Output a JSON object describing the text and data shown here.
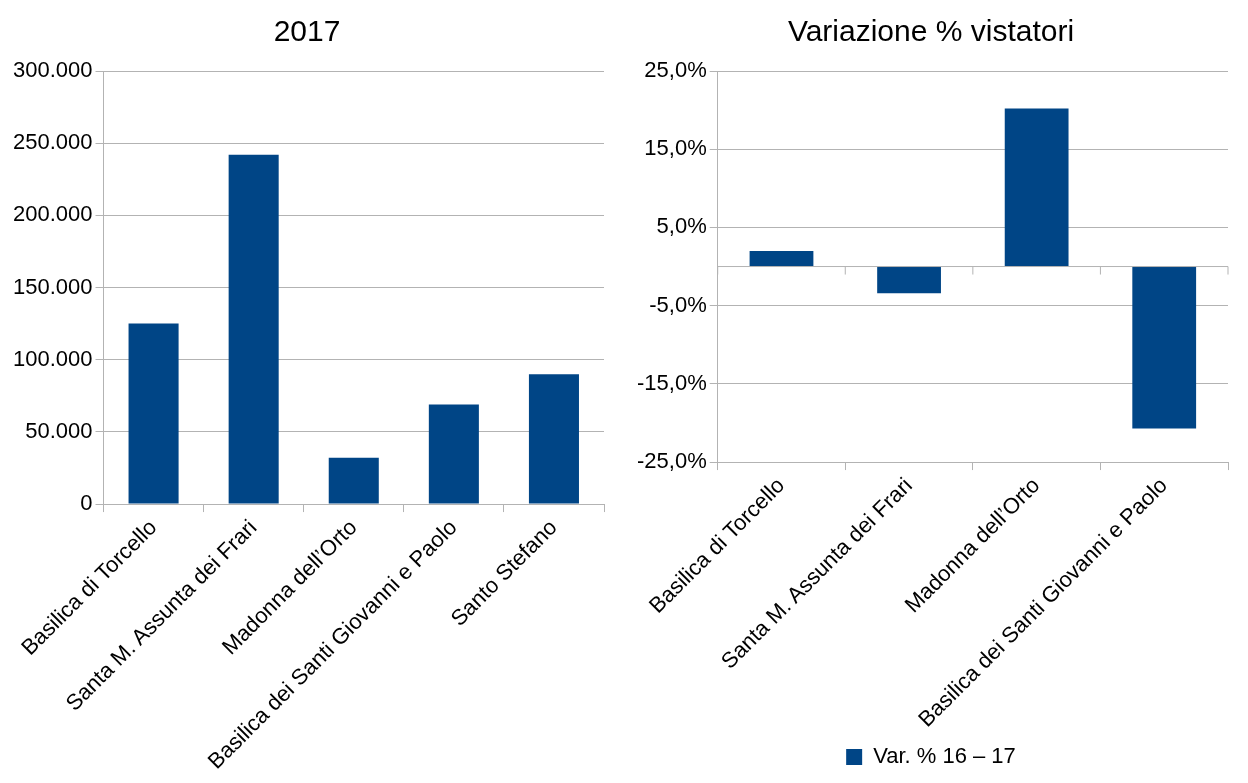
{
  "chart_data": [
    {
      "type": "bar",
      "title": "2017",
      "categories": [
        "Basilica di Torcello",
        "Santa M. Assunta dei Frari",
        "Madonna dell’Orto",
        "Basilica dei Santi Giovanni e Paolo",
        "Santo Stefano"
      ],
      "values": [
        125000,
        242000,
        32000,
        69000,
        90000
      ],
      "color": "#004586",
      "ylim": [
        0,
        300000
      ],
      "yticks": [
        {
          "value": 0,
          "label": "0"
        },
        {
          "value": 50000,
          "label": "50.000"
        },
        {
          "value": 100000,
          "label": "100.000"
        },
        {
          "value": 150000,
          "label": "150.000"
        },
        {
          "value": 200000,
          "label": "200.000"
        },
        {
          "value": 250000,
          "label": "250.000"
        },
        {
          "value": 300000,
          "label": "300.000"
        }
      ],
      "grid": "y",
      "legend": false
    },
    {
      "type": "bar",
      "title": "Variazione % vistatori",
      "categories": [
        "Basilica di Torcello",
        "Santa M. Assunta dei Frari",
        "Madonna dell’Orto",
        "Basilica dei Santi Giovanni e Paolo"
      ],
      "series": [
        {
          "name": "Var. % 16 – 17",
          "color": "#004586",
          "values": [
            2.0,
            -3.4,
            20.2,
            -20.7
          ]
        }
      ],
      "ylim": [
        -25,
        25
      ],
      "yticks": [
        {
          "value": -25,
          "label": "-25,0%"
        },
        {
          "value": -15,
          "label": "-15,0%"
        },
        {
          "value": -5,
          "label": "-5,0%"
        },
        {
          "value": 5,
          "label": "5,0%"
        },
        {
          "value": 15,
          "label": "15,0%"
        },
        {
          "value": 25,
          "label": "25,0%"
        }
      ],
      "grid": "y",
      "legend": "bottom"
    }
  ]
}
